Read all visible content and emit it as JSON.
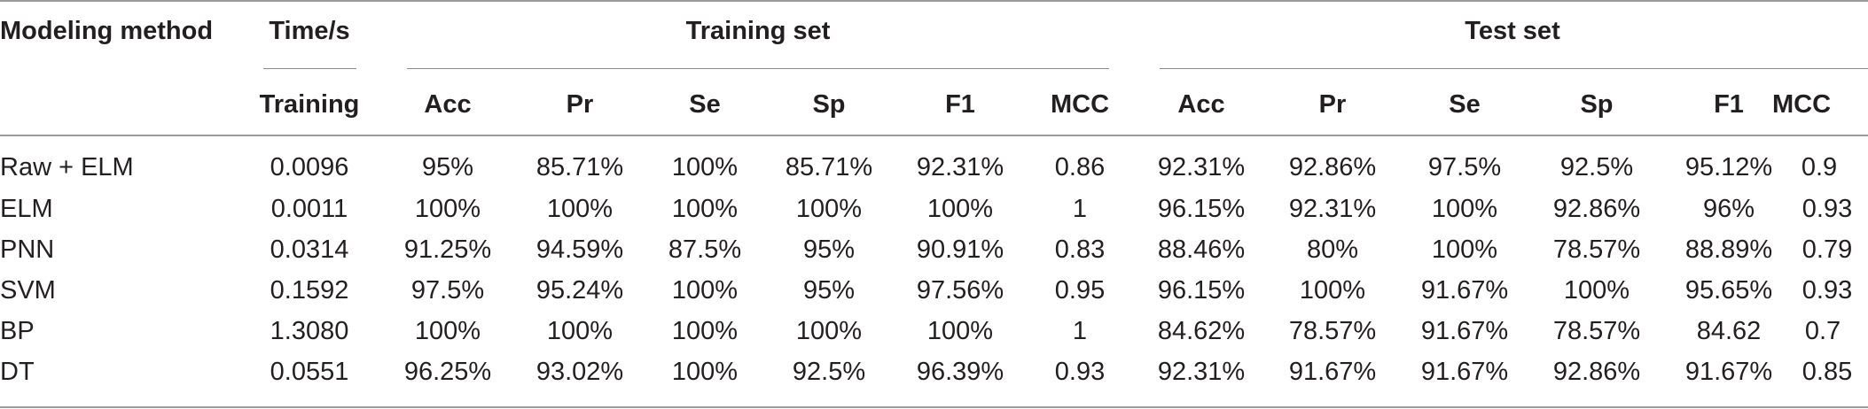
{
  "header": {
    "method_label": "Modeling method",
    "time_label": "Time/s",
    "training_set_label": "Training set",
    "test_set_label": "Test set",
    "time_sub": "Training",
    "train_cols": [
      "Acc",
      "Pr",
      "Se",
      "Sp",
      "F1",
      "MCC"
    ],
    "test_cols": [
      "Acc",
      "Pr",
      "Se",
      "Sp",
      "F1",
      "MCC"
    ]
  },
  "rows": [
    {
      "method": "Raw + ELM",
      "time": "0.0096",
      "train": [
        "95%",
        "85.71%",
        "100%",
        "85.71%",
        "92.31%",
        "0.86"
      ],
      "test": [
        "92.31%",
        "92.86%",
        "97.5%",
        "92.5%",
        "95.12%",
        "0.9"
      ]
    },
    {
      "method": "ELM",
      "time": "0.0011",
      "train": [
        "100%",
        "100%",
        "100%",
        "100%",
        "100%",
        "1"
      ],
      "test": [
        "96.15%",
        "92.31%",
        "100%",
        "92.86%",
        "96%",
        "0.93"
      ]
    },
    {
      "method": "PNN",
      "time": "0.0314",
      "train": [
        "91.25%",
        "94.59%",
        "87.5%",
        "95%",
        "90.91%",
        "0.83"
      ],
      "test": [
        "88.46%",
        "80%",
        "100%",
        "78.57%",
        "88.89%",
        "0.79"
      ]
    },
    {
      "method": "SVM",
      "time": "0.1592",
      "train": [
        "97.5%",
        "95.24%",
        "100%",
        "95%",
        "97.56%",
        "0.95"
      ],
      "test": [
        "96.15%",
        "100%",
        "91.67%",
        "100%",
        "95.65%",
        "0.93"
      ]
    },
    {
      "method": "BP",
      "time": "1.3080",
      "train": [
        "100%",
        "100%",
        "100%",
        "100%",
        "100%",
        "1"
      ],
      "test": [
        "84.62%",
        "78.57%",
        "91.67%",
        "78.57%",
        "84.62",
        "0.7"
      ]
    },
    {
      "method": "DT",
      "time": "0.0551",
      "train": [
        "96.25%",
        "93.02%",
        "100%",
        "92.5%",
        "96.39%",
        "0.93"
      ],
      "test": [
        "92.31%",
        "91.67%",
        "91.67%",
        "92.86%",
        "91.67%",
        "0.85"
      ]
    }
  ]
}
